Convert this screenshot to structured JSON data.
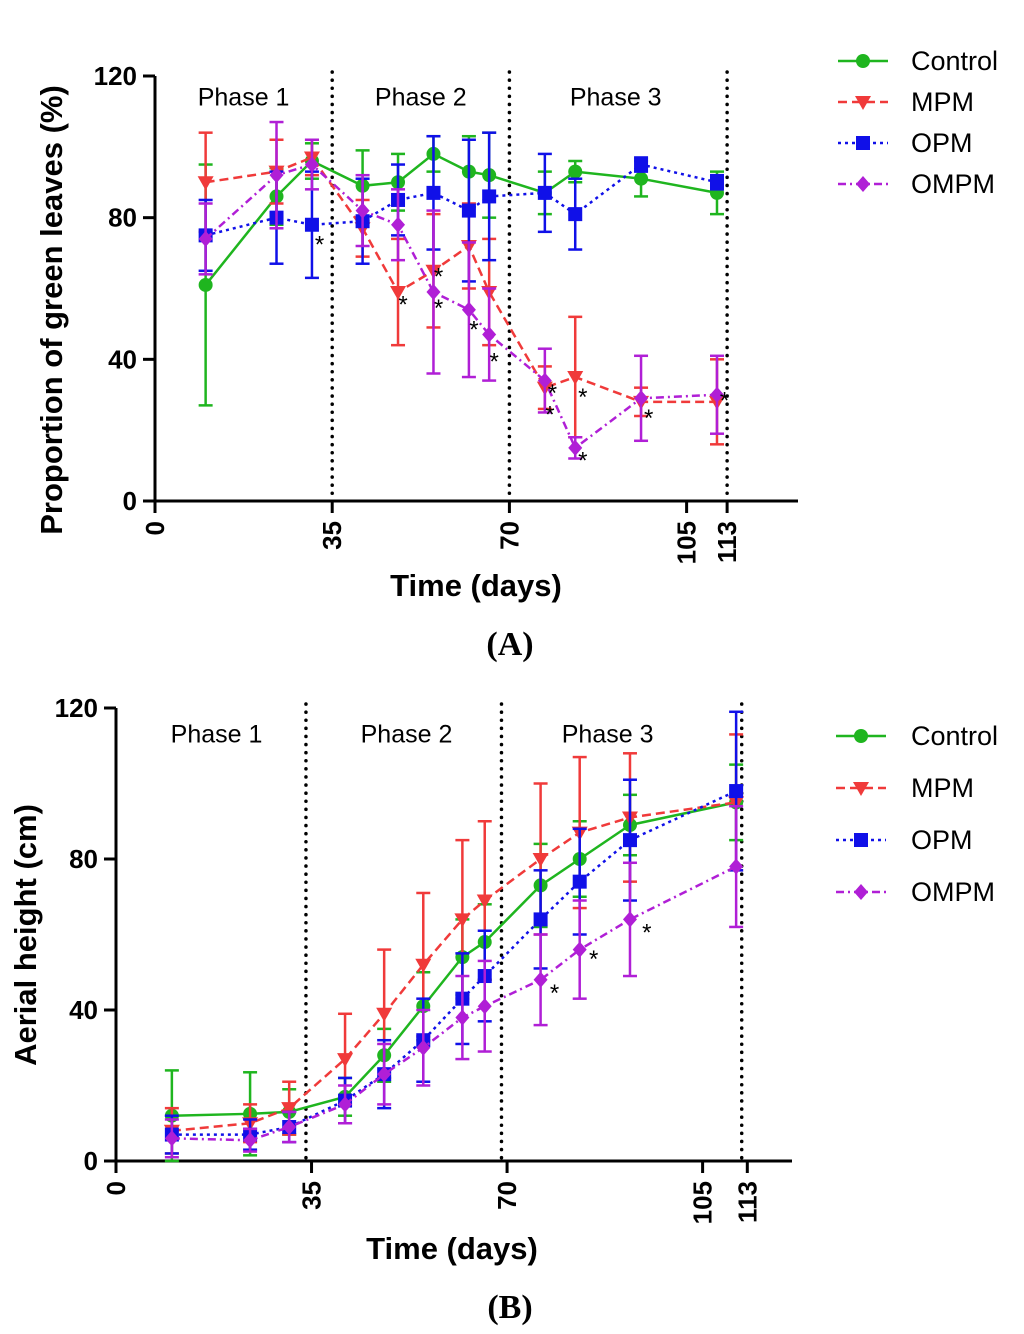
{
  "figure_labels": [
    "(A)",
    "(B)"
  ],
  "legend": [
    {
      "name": "Control",
      "color": "#1fb51f",
      "marker": "circle",
      "dash": "solid"
    },
    {
      "name": "MPM",
      "color": "#f03a3a",
      "marker": "triangle-down",
      "dash": "dashed"
    },
    {
      "name": "OPM",
      "color": "#1010e8",
      "marker": "square",
      "dash": "dotted"
    },
    {
      "name": "OMPM",
      "color": "#b01fd6",
      "marker": "diamond",
      "dash": "dashdot"
    }
  ],
  "chart_data": [
    {
      "type": "line",
      "panel": "(A)",
      "xlabel": "Time (days)",
      "ylabel": "Proportion of green leaves (%)",
      "xlim": [
        0,
        127
      ],
      "ylim": [
        0,
        120
      ],
      "xticks": [
        0,
        35,
        70,
        105,
        113
      ],
      "yticks": [
        0,
        40,
        80,
        120
      ],
      "phase_lines": [
        35,
        70,
        113
      ],
      "phase_labels": [
        {
          "text": "Phase 1",
          "x": 17.5,
          "y": 114
        },
        {
          "text": "Phase 2",
          "x": 52.5,
          "y": 114
        },
        {
          "text": "Phase 3",
          "x": 91,
          "y": 114
        }
      ],
      "series": [
        {
          "name": "Control",
          "x": [
            10,
            24,
            31,
            41,
            48,
            55,
            62,
            66,
            77,
            83,
            96,
            111
          ],
          "y": [
            61,
            86,
            96,
            89,
            90,
            98,
            93,
            92,
            87,
            93,
            91,
            87
          ],
          "err": [
            34,
            8,
            5,
            10,
            8,
            5,
            10,
            12,
            6,
            3,
            5,
            6
          ]
        },
        {
          "name": "MPM",
          "x": [
            10,
            24,
            31,
            41,
            48,
            55,
            62,
            66,
            77,
            83,
            96,
            111
          ],
          "y": [
            90,
            93,
            97,
            77,
            59,
            65,
            72,
            59,
            32,
            35,
            28,
            28
          ],
          "err": [
            14,
            9,
            5,
            8,
            15,
            16,
            12,
            15,
            6,
            17,
            4,
            12
          ]
        },
        {
          "name": "OPM",
          "x": [
            10,
            24,
            31,
            41,
            48,
            55,
            62,
            66,
            77,
            83,
            96,
            111
          ],
          "y": [
            75,
            80,
            78,
            79,
            85,
            87,
            82,
            86,
            87,
            81,
            95,
            90
          ],
          "err": [
            10,
            13,
            15,
            12,
            10,
            16,
            20,
            18,
            11,
            10,
            2,
            2
          ]
        },
        {
          "name": "OMPM",
          "x": [
            10,
            24,
            31,
            41,
            48,
            55,
            62,
            66,
            77,
            83,
            96,
            111
          ],
          "y": [
            74,
            92,
            95,
            82,
            78,
            59,
            54,
            47,
            34,
            15,
            29,
            30
          ],
          "err": [
            10,
            15,
            7,
            10,
            10,
            23,
            19,
            13,
            9,
            3,
            12,
            11
          ]
        }
      ],
      "annotations": [
        {
          "text": "*",
          "x": 32.5,
          "y": 73
        },
        {
          "text": "*",
          "x": 49,
          "y": 56
        },
        {
          "text": "*",
          "x": 56,
          "y": 64
        },
        {
          "text": "*",
          "x": 56,
          "y": 55
        },
        {
          "text": "*",
          "x": 63,
          "y": 49
        },
        {
          "text": "*",
          "x": 67,
          "y": 40
        },
        {
          "text": "*",
          "x": 78.5,
          "y": 31
        },
        {
          "text": "*",
          "x": 78,
          "y": 25
        },
        {
          "text": "*",
          "x": 84.5,
          "y": 30
        },
        {
          "text": "*",
          "x": 84.5,
          "y": 12
        },
        {
          "text": "*",
          "x": 97.5,
          "y": 24
        },
        {
          "text": "*",
          "x": 112.5,
          "y": 29
        }
      ]
    },
    {
      "type": "line",
      "panel": "(B)",
      "xlabel": "Time (days)",
      "ylabel": "Aerial height (cm)",
      "xlim": [
        0,
        121
      ],
      "ylim": [
        0,
        120
      ],
      "xticks": [
        0,
        35,
        70,
        105,
        113
      ],
      "yticks": [
        0,
        40,
        80,
        120
      ],
      "phase_lines": [
        34,
        69,
        112
      ],
      "phase_labels": [
        {
          "text": "Phase 1",
          "x": 18,
          "y": 113
        },
        {
          "text": "Phase 2",
          "x": 52,
          "y": 113
        },
        {
          "text": "Phase 3",
          "x": 88,
          "y": 113
        }
      ],
      "series": [
        {
          "name": "Control",
          "x": [
            10,
            24,
            31,
            41,
            48,
            55,
            62,
            66,
            76,
            83,
            92,
            111
          ],
          "y": [
            12,
            12.5,
            13,
            17,
            28,
            41,
            54,
            58,
            73,
            80,
            89,
            95
          ],
          "err": [
            12,
            11,
            6,
            5,
            7,
            9,
            10,
            10,
            11,
            10,
            8,
            10
          ]
        },
        {
          "name": "MPM",
          "x": [
            10,
            24,
            31,
            41,
            48,
            55,
            62,
            66,
            76,
            83,
            92,
            111
          ],
          "y": [
            8,
            10,
            14,
            27,
            39,
            52,
            64,
            69,
            80,
            87,
            91,
            95
          ],
          "err": [
            6,
            5,
            7,
            12,
            17,
            19,
            21,
            21,
            20,
            20,
            17,
            18
          ]
        },
        {
          "name": "OPM",
          "x": [
            10,
            24,
            31,
            41,
            48,
            55,
            62,
            66,
            76,
            83,
            92,
            111
          ],
          "y": [
            7,
            7,
            9,
            16,
            23,
            32,
            43,
            49,
            64,
            74,
            85,
            98
          ],
          "err": [
            5,
            4,
            4,
            6,
            9,
            11,
            12,
            12,
            13,
            14,
            16,
            21
          ]
        },
        {
          "name": "OMPM",
          "x": [
            10,
            24,
            31,
            41,
            48,
            55,
            62,
            66,
            76,
            83,
            92,
            111
          ],
          "y": [
            6,
            5.5,
            9,
            15,
            23,
            30,
            38,
            41,
            48,
            56,
            64,
            78
          ],
          "err": [
            5,
            3,
            4,
            5,
            8,
            10,
            11,
            12,
            12,
            13,
            15,
            16
          ]
        }
      ],
      "annotations": [
        {
          "text": "*",
          "x": 78.5,
          "y": 45
        },
        {
          "text": "*",
          "x": 85.5,
          "y": 54
        },
        {
          "text": "*",
          "x": 95,
          "y": 61
        }
      ]
    }
  ]
}
